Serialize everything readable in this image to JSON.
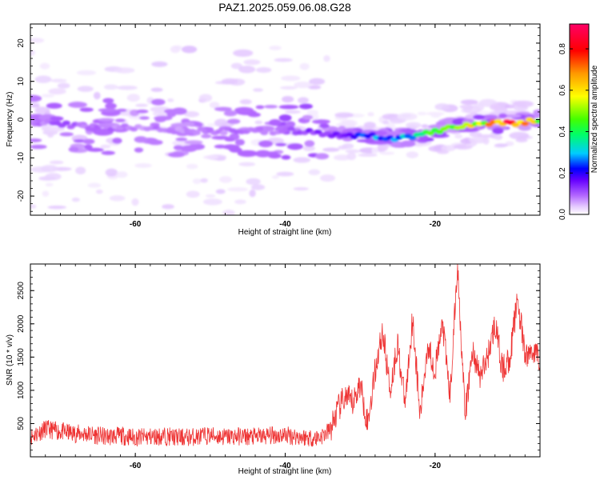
{
  "figure": {
    "title": "PAZ1.2025.059.06.08.G28"
  },
  "chart_data": [
    {
      "type": "heatmap",
      "name": "spectrogram",
      "xlabel": "Height of straight line (km)",
      "ylabel": "Frequency (Hz)",
      "xlim": [
        -74,
        -6
      ],
      "ylim": [
        -25,
        25
      ],
      "x_ticks": [
        -60,
        -40,
        -20
      ],
      "y_ticks": [
        -20,
        -10,
        0,
        10,
        20
      ],
      "x_tick_labels": [
        "-60",
        "-40",
        "-20"
      ],
      "y_tick_labels": [
        "-20",
        "-10",
        "0",
        "10",
        "20"
      ],
      "colorbar": {
        "label": "Normalized spectral amplitude",
        "range": [
          0,
          0.92
        ],
        "ticks": [
          0.0,
          0.2,
          0.4,
          0.6,
          0.8
        ],
        "tick_labels": [
          "0.0",
          "0.2",
          "0.4",
          "0.6",
          "0.8"
        ],
        "colormap": [
          "#ffffff",
          "#e6ccff",
          "#b266ff",
          "#6600ff",
          "#0000ff",
          "#00ccff",
          "#00ff66",
          "#66ff00",
          "#ffff00",
          "#ff9900",
          "#ff0000",
          "#ff0066"
        ]
      },
      "ridge": {
        "x": [
          -74,
          -70,
          -66,
          -62,
          -58,
          -54,
          -50,
          -46,
          -42,
          -38,
          -34,
          -30,
          -26,
          -22,
          -18,
          -14,
          -10,
          -6
        ],
        "freq": [
          -1,
          -1,
          -2,
          -2,
          -2,
          -3,
          -3,
          -3,
          -3,
          -3,
          -4,
          -4,
          -5,
          -4,
          -2,
          -1,
          -1,
          0
        ],
        "amplitude": [
          0.15,
          0.18,
          0.17,
          0.16,
          0.15,
          0.15,
          0.16,
          0.17,
          0.16,
          0.22,
          0.25,
          0.35,
          0.42,
          0.5,
          0.6,
          0.72,
          0.85,
          0.6
        ]
      }
    },
    {
      "type": "line",
      "name": "snr",
      "xlabel": "Height of straight line (km)",
      "ylabel": "SNR (10 * v/v)",
      "xlim": [
        -74,
        -6
      ],
      "ylim": [
        0,
        2900
      ],
      "x_ticks": [
        -60,
        -40,
        -20
      ],
      "y_ticks": [
        500,
        1000,
        1500,
        2000,
        2500
      ],
      "x_tick_labels": [
        "-60",
        "-40",
        "-20"
      ],
      "y_tick_labels": [
        "500",
        "1000",
        "1500",
        "2000",
        "2500"
      ],
      "color": "#ee3333",
      "x": [
        -74,
        -72,
        -70,
        -68,
        -66,
        -64,
        -62,
        -60,
        -58,
        -56,
        -54,
        -52,
        -50,
        -48,
        -46,
        -44,
        -42,
        -40,
        -38,
        -36,
        -35,
        -34,
        -33,
        -32,
        -31,
        -30,
        -29,
        -28,
        -27,
        -26,
        -25,
        -24,
        -23,
        -22,
        -21,
        -20,
        -19,
        -18,
        -17,
        -16,
        -15,
        -14,
        -13,
        -12,
        -11,
        -10,
        -9,
        -8,
        -7,
        -6
      ],
      "values": [
        300,
        420,
        380,
        350,
        340,
        300,
        320,
        290,
        300,
        310,
        290,
        300,
        320,
        300,
        310,
        300,
        320,
        330,
        300,
        280,
        320,
        400,
        700,
        900,
        800,
        1100,
        500,
        1300,
        1900,
        1000,
        1700,
        800,
        2100,
        600,
        1700,
        1300,
        2000,
        900,
        2900,
        600,
        1600,
        1200,
        1500,
        2000,
        1300,
        1500,
        2400,
        1500,
        1600,
        1500
      ]
    }
  ]
}
